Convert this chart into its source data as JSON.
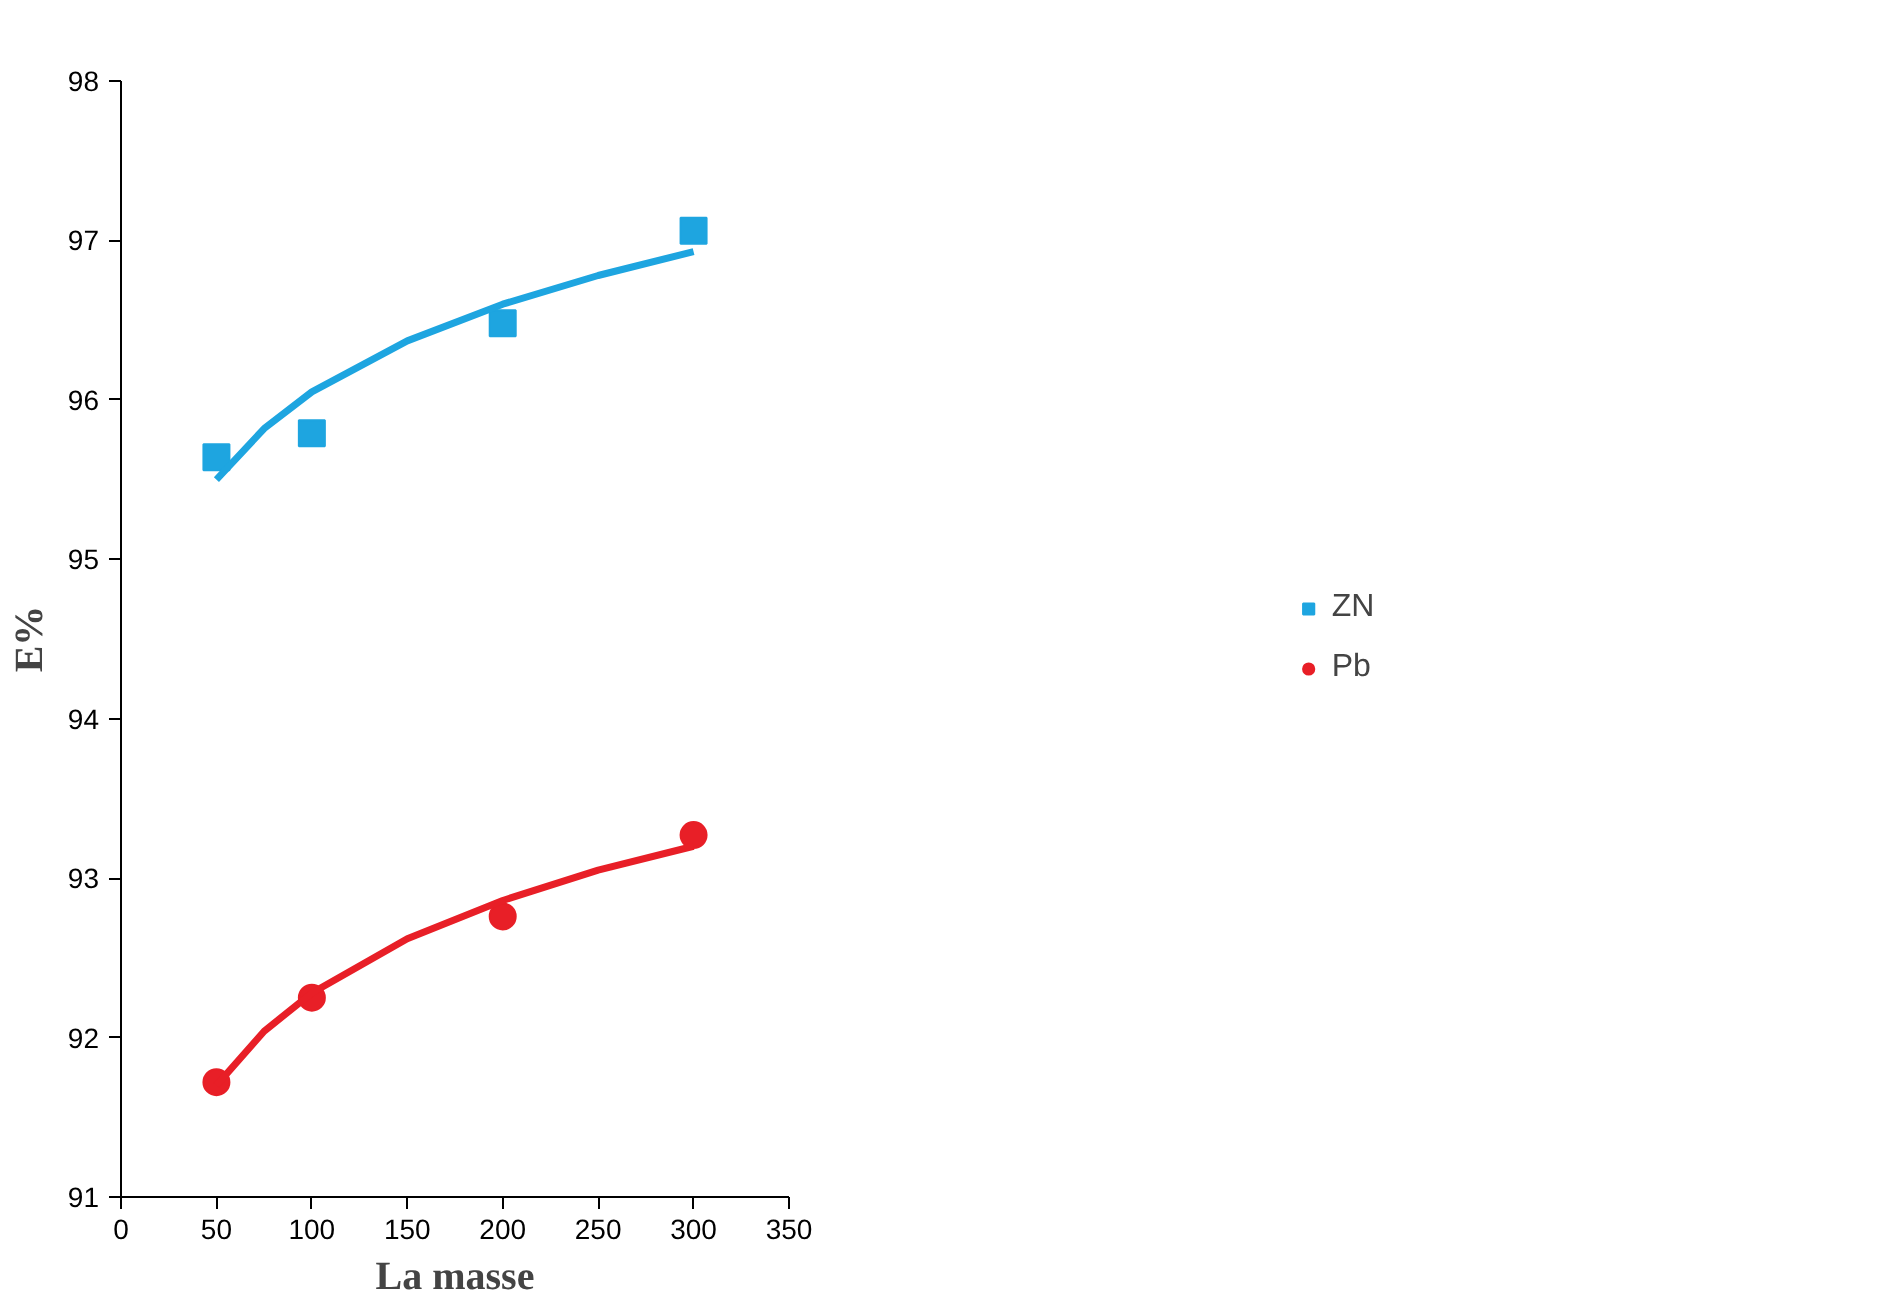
{
  "chart_data": {
    "type": "scatter",
    "xlabel": "La masse",
    "ylabel": "E%",
    "xlim": [
      0,
      350
    ],
    "xticks": [
      0,
      50,
      100,
      150,
      200,
      250,
      300,
      350
    ],
    "ylim": [
      91,
      98
    ],
    "yticks": [
      91,
      92,
      93,
      94,
      95,
      96,
      97,
      98
    ],
    "grid": false,
    "legend": "right",
    "series": [
      {
        "name": "ZN",
        "color": "#1ea5e0",
        "marker": "square",
        "x": [
          50,
          100,
          200,
          300
        ],
        "values": [
          95.64,
          95.79,
          96.48,
          97.06
        ]
      },
      {
        "name": "Pb",
        "color": "#e81f27",
        "marker": "circle",
        "x": [
          50,
          100,
          200,
          300
        ],
        "values": [
          91.72,
          92.25,
          92.76,
          93.27
        ]
      },
      {
        "type": "line",
        "color": "#1ea5e0",
        "marker": "none",
        "x": [
          50,
          75,
          100,
          150,
          200,
          250,
          300
        ],
        "values": [
          95.5,
          95.82,
          96.05,
          96.37,
          96.6,
          96.78,
          96.93
        ]
      },
      {
        "type": "line",
        "color": "#e81f27",
        "marker": "none",
        "x": [
          50,
          75,
          100,
          150,
          200,
          250,
          300
        ],
        "values": [
          91.7,
          92.04,
          92.28,
          92.62,
          92.86,
          93.05,
          93.2
        ]
      }
    ]
  }
}
